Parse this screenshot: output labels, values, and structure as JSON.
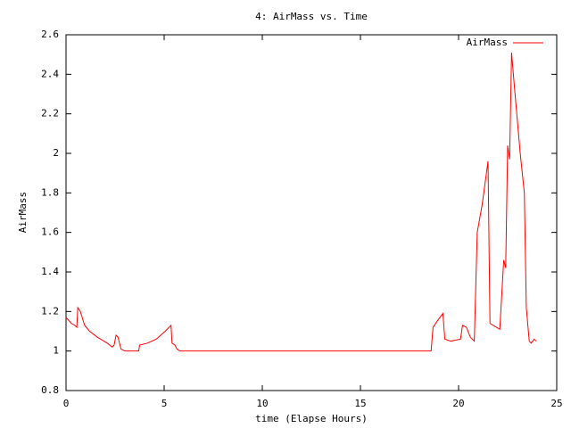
{
  "chart_data": {
    "type": "line",
    "title": "4: AirMass vs. Time",
    "x_label": "time (Elapse Hours)",
    "y_label": "AirMass",
    "x": [
      0,
      0.27,
      0.45,
      0.55,
      0.6,
      0.73,
      0.95,
      1.2,
      1.6,
      2.1,
      2.35,
      2.45,
      2.55,
      2.65,
      2.8,
      3.0,
      3.7,
      3.75,
      4.15,
      4.6,
      5.05,
      5.35,
      5.4,
      5.55,
      5.65,
      5.8,
      18.6,
      18.7,
      18.9,
      19.2,
      19.3,
      19.6,
      20.1,
      20.2,
      20.4,
      20.6,
      20.8,
      20.95,
      21.2,
      21.5,
      21.6,
      22.1,
      22.3,
      22.4,
      22.5,
      22.6,
      22.7,
      22.85,
      23.15,
      23.35,
      23.45,
      23.6,
      23.7,
      23.85,
      23.95
    ],
    "series": [
      {
        "name": "AirMass",
        "color": "#ff0000",
        "values": [
          1.17,
          1.14,
          1.13,
          1.12,
          1.22,
          1.2,
          1.13,
          1.1,
          1.07,
          1.04,
          1.02,
          1.03,
          1.08,
          1.07,
          1.01,
          1.0,
          1.0,
          1.03,
          1.04,
          1.06,
          1.1,
          1.13,
          1.04,
          1.03,
          1.01,
          1.0,
          1.0,
          1.12,
          1.15,
          1.19,
          1.06,
          1.05,
          1.06,
          1.13,
          1.12,
          1.07,
          1.05,
          1.6,
          1.74,
          1.96,
          1.14,
          1.11,
          1.46,
          1.42,
          2.04,
          1.97,
          2.51,
          2.33,
          1.99,
          1.8,
          1.22,
          1.05,
          1.04,
          1.06,
          1.05
        ]
      }
    ],
    "xlim": [
      0,
      25
    ],
    "xticks": [
      0,
      5,
      10,
      15,
      20,
      25
    ],
    "ylim": [
      0.8,
      2.6
    ],
    "yticks": [
      0.8,
      1,
      1.2,
      1.4,
      1.6,
      1.8,
      2,
      2.2,
      2.4,
      2.6
    ],
    "legend": "top-right"
  }
}
